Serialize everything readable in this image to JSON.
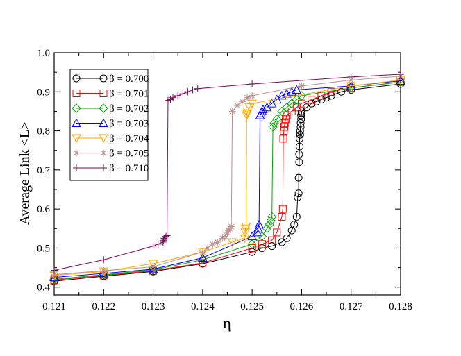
{
  "chart_data": {
    "type": "line",
    "title": "",
    "xlabel": "η",
    "ylabel": "Average Link <L>",
    "xlim": [
      0.121,
      0.128
    ],
    "ylim": [
      0.38,
      1.0
    ],
    "xticks": [
      0.121,
      0.122,
      0.123,
      0.124,
      0.125,
      0.126,
      0.127,
      0.128
    ],
    "xtick_labels": [
      "0.121",
      "0.122",
      "0.123",
      "0.124",
      "0.125",
      "0.126",
      "0.127",
      "0.128"
    ],
    "yticks": [
      0.4,
      0.5,
      0.6,
      0.7,
      0.8,
      0.9,
      1.0
    ],
    "ytick_labels": [
      "0.4",
      "0.5",
      "0.6",
      "0.7",
      "0.8",
      "0.9",
      "1.0"
    ],
    "legend_position": "top-left",
    "series": [
      {
        "name": "β = 0.700",
        "color": "#000000",
        "marker": "circle",
        "x": [
          0.121,
          0.122,
          0.123,
          0.124,
          0.125,
          0.1252,
          0.1254,
          0.1256,
          0.1257,
          0.1258,
          0.12585,
          0.1259,
          0.12592,
          0.12594,
          0.12594,
          0.12595,
          0.12595,
          0.12596,
          0.12596,
          0.12597,
          0.12597,
          0.12598,
          0.12598,
          0.12599,
          0.12599,
          0.126,
          0.126,
          0.1261,
          0.1262,
          0.1263,
          0.1264,
          0.1265,
          0.1266,
          0.1268,
          0.127,
          0.128
        ],
        "y": [
          0.415,
          0.428,
          0.44,
          0.46,
          0.49,
          0.5,
          0.505,
          0.515,
          0.525,
          0.545,
          0.56,
          0.58,
          0.63,
          0.64,
          0.68,
          0.72,
          0.74,
          0.76,
          0.78,
          0.79,
          0.8,
          0.81,
          0.82,
          0.83,
          0.84,
          0.845,
          0.85,
          0.86,
          0.87,
          0.875,
          0.88,
          0.885,
          0.89,
          0.9,
          0.905,
          0.92
        ]
      },
      {
        "name": "β = 0.701",
        "color": "#ff0000",
        "marker": "square",
        "x": [
          0.121,
          0.122,
          0.123,
          0.124,
          0.125,
          0.1252,
          0.1254,
          0.1255,
          0.1256,
          0.12562,
          0.12563,
          0.12564,
          0.12565,
          0.12566,
          0.12568,
          0.1257,
          0.1258,
          0.1259,
          0.126,
          0.1262,
          0.1264,
          0.1266,
          0.127,
          0.128
        ],
        "y": [
          0.418,
          0.43,
          0.442,
          0.462,
          0.5,
          0.51,
          0.52,
          0.54,
          0.58,
          0.6,
          0.78,
          0.8,
          0.81,
          0.82,
          0.83,
          0.84,
          0.85,
          0.86,
          0.87,
          0.88,
          0.89,
          0.9,
          0.91,
          0.925
        ]
      },
      {
        "name": "β = 0.702",
        "color": "#00aa00",
        "marker": "diamond",
        "x": [
          0.121,
          0.122,
          0.123,
          0.124,
          0.125,
          0.1252,
          0.1253,
          0.12535,
          0.12538,
          0.1254,
          0.12542,
          0.12545,
          0.1255,
          0.1256,
          0.1257,
          0.1258,
          0.1259,
          0.126,
          0.127,
          0.128
        ],
        "y": [
          0.42,
          0.432,
          0.444,
          0.47,
          0.51,
          0.53,
          0.55,
          0.56,
          0.57,
          0.58,
          0.81,
          0.82,
          0.83,
          0.85,
          0.86,
          0.87,
          0.88,
          0.89,
          0.91,
          0.925
        ]
      },
      {
        "name": "β = 0.703",
        "color": "#0000ff",
        "marker": "triangle-up",
        "x": [
          0.121,
          0.122,
          0.123,
          0.124,
          0.125,
          0.1251,
          0.12512,
          0.12514,
          0.12516,
          0.12518,
          0.1252,
          0.12522,
          0.1253,
          0.1254,
          0.1255,
          0.1256,
          0.1257,
          0.1258,
          0.1259,
          0.127,
          0.128
        ],
        "y": [
          0.425,
          0.435,
          0.446,
          0.475,
          0.53,
          0.54,
          0.55,
          0.56,
          0.84,
          0.845,
          0.85,
          0.855,
          0.86,
          0.87,
          0.88,
          0.89,
          0.895,
          0.9,
          0.905,
          0.915,
          0.928
        ]
      },
      {
        "name": "β = 0.704",
        "color": "#ffa500",
        "marker": "triangle-down",
        "x": [
          0.121,
          0.122,
          0.123,
          0.124,
          0.1246,
          0.12485,
          0.12486,
          0.12487,
          0.12488,
          0.12489,
          0.1249,
          0.12491,
          0.12495,
          0.125,
          0.127,
          0.128
        ],
        "y": [
          0.43,
          0.44,
          0.46,
          0.49,
          0.515,
          0.525,
          0.54,
          0.55,
          0.555,
          0.84,
          0.845,
          0.85,
          0.86,
          0.87,
          0.915,
          0.93
        ]
      },
      {
        "name": "β = 0.705",
        "color": "#bc8f8f",
        "marker": "star",
        "x": [
          0.121,
          0.122,
          0.123,
          0.124,
          0.1241,
          0.1242,
          0.1243,
          0.1244,
          0.12445,
          0.1245,
          0.12452,
          0.12455,
          0.12458,
          0.1246,
          0.1247,
          0.1248,
          0.1249,
          0.125,
          0.126,
          0.127,
          0.128
        ],
        "y": [
          0.432,
          0.442,
          0.452,
          0.49,
          0.5,
          0.51,
          0.515,
          0.525,
          0.53,
          0.54,
          0.545,
          0.55,
          0.555,
          0.85,
          0.865,
          0.875,
          0.885,
          0.89,
          0.915,
          0.93,
          0.94
        ]
      },
      {
        "name": "β = 0.710",
        "color": "#7b0a59",
        "marker": "plus",
        "x": [
          0.121,
          0.122,
          0.123,
          0.1231,
          0.1232,
          0.12321,
          0.12322,
          0.12324,
          0.12326,
          0.12328,
          0.1233,
          0.12335,
          0.1234,
          0.1235,
          0.1236,
          0.1237,
          0.1238,
          0.1239,
          0.125,
          0.127,
          0.128
        ],
        "y": [
          0.443,
          0.47,
          0.505,
          0.51,
          0.515,
          0.52,
          0.525,
          0.528,
          0.53,
          0.532,
          0.878,
          0.88,
          0.885,
          0.89,
          0.895,
          0.9,
          0.905,
          0.908,
          0.92,
          0.938,
          0.945
        ]
      }
    ]
  }
}
